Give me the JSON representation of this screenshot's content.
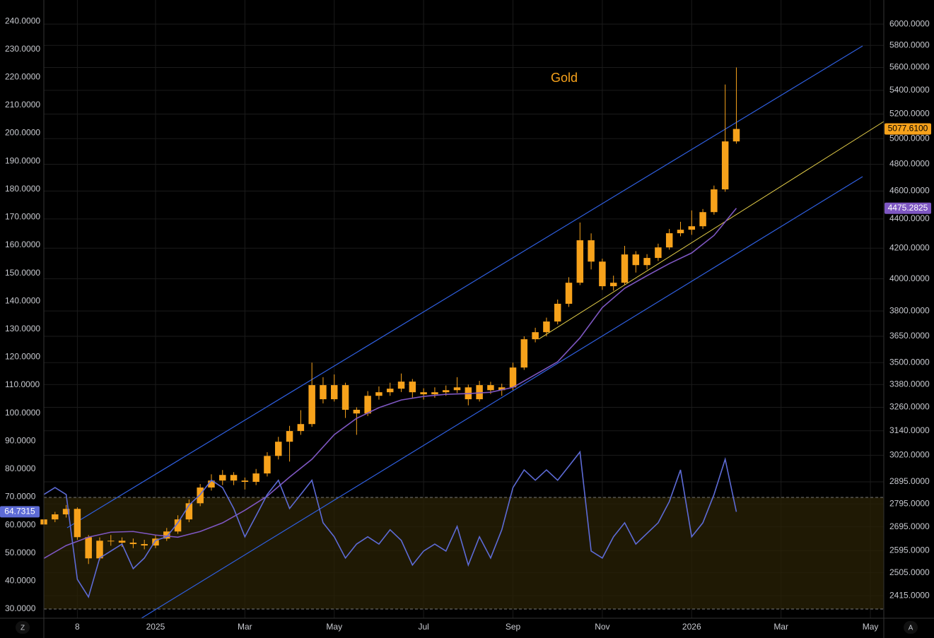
{
  "chart_data": {
    "type": "candlestick",
    "title": "Gold",
    "grid": true,
    "y2_log": true,
    "x": [
      -2.5,
      -2.25,
      -2,
      -1.75,
      -1.5,
      -1.25,
      -1,
      -0.75,
      -0.5,
      -0.25,
      0,
      0.25,
      0.5,
      0.75,
      1,
      1.25,
      1.5,
      1.75,
      2,
      2.25,
      2.5,
      2.75,
      3,
      3.25,
      3.5,
      3.75,
      4,
      4.25,
      4.5,
      4.75,
      5,
      5.25,
      5.5,
      5.75,
      6,
      6.25,
      6.5,
      6.75,
      7,
      7.25,
      7.5,
      7.75,
      8,
      8.25,
      8.5,
      8.75,
      9,
      9.25,
      9.5,
      9.75,
      10,
      10.25,
      10.5,
      10.75,
      11,
      11.25,
      11.5,
      11.75,
      12,
      12.25,
      12.5,
      12.75,
      13
    ],
    "xlim": [
      -2.5,
      16.3
    ],
    "xticks": [
      {
        "value": -1.75,
        "label": "8"
      },
      {
        "value": 0,
        "label": "2025"
      },
      {
        "value": 2,
        "label": "Mar"
      },
      {
        "value": 4,
        "label": "May"
      },
      {
        "value": 6,
        "label": "Jul"
      },
      {
        "value": 8,
        "label": "Sep"
      },
      {
        "value": 10,
        "label": "Nov"
      },
      {
        "value": 12,
        "label": "2026"
      },
      {
        "value": 14,
        "label": "Mar"
      },
      {
        "value": 16,
        "label": "May"
      }
    ],
    "ylim": [
      26.7,
      247.6
    ],
    "yticks": [
      {
        "value": 240,
        "label": "240.0000"
      },
      {
        "value": 230,
        "label": "230.0000"
      },
      {
        "value": 220,
        "label": "220.0000"
      },
      {
        "value": 210,
        "label": "210.0000"
      },
      {
        "value": 200,
        "label": "200.0000"
      },
      {
        "value": 190,
        "label": "190.0000"
      },
      {
        "value": 180,
        "label": "180.0000"
      },
      {
        "value": 170,
        "label": "170.0000"
      },
      {
        "value": 160,
        "label": "160.0000"
      },
      {
        "value": 150,
        "label": "150.0000"
      },
      {
        "value": 140,
        "label": "140.0000"
      },
      {
        "value": 130,
        "label": "130.0000"
      },
      {
        "value": 120,
        "label": "120.0000"
      },
      {
        "value": 110,
        "label": "110.0000"
      },
      {
        "value": 100,
        "label": "100.0000"
      },
      {
        "value": 90,
        "label": "90.0000"
      },
      {
        "value": 80,
        "label": "80.0000"
      },
      {
        "value": 70,
        "label": "70.0000"
      },
      {
        "value": 60,
        "label": "60.0000"
      },
      {
        "value": 50,
        "label": "50.0000"
      },
      {
        "value": 40,
        "label": "40.0000"
      },
      {
        "value": 30,
        "label": "30.0000"
      }
    ],
    "y2lim": [
      2330,
      6235
    ],
    "y2ticks": [
      {
        "value": 6000,
        "label": "6000.0000"
      },
      {
        "value": 5800,
        "label": "5800.0000"
      },
      {
        "value": 5600,
        "label": "5600.0000"
      },
      {
        "value": 5400,
        "label": "5400.0000"
      },
      {
        "value": 5200,
        "label": "5200.0000"
      },
      {
        "value": 5000,
        "label": "5000.0000"
      },
      {
        "value": 4800,
        "label": "4800.0000"
      },
      {
        "value": 4600,
        "label": "4600.0000"
      },
      {
        "value": 4400,
        "label": "4400.0000"
      },
      {
        "value": 4200,
        "label": "4200.0000"
      },
      {
        "value": 4000,
        "label": "4000.0000"
      },
      {
        "value": 3800,
        "label": "3800.0000"
      },
      {
        "value": 3650,
        "label": "3650.0000"
      },
      {
        "value": 3500,
        "label": "3500.0000"
      },
      {
        "value": 3380,
        "label": "3380.0000"
      },
      {
        "value": 3260,
        "label": "3260.0000"
      },
      {
        "value": 3140,
        "label": "3140.0000"
      },
      {
        "value": 3020,
        "label": "3020.0000"
      },
      {
        "value": 2895,
        "label": "2895.0000"
      },
      {
        "value": 2795,
        "label": "2795.0000"
      },
      {
        "value": 2695,
        "label": "2695.0000"
      },
      {
        "value": 2595,
        "label": "2595.0000"
      },
      {
        "value": 2505,
        "label": "2505.0000"
      },
      {
        "value": 2415,
        "label": "2415.0000"
      }
    ],
    "series": [
      {
        "type": "candlestick",
        "axis": "y2",
        "color": "#f7a21b",
        "last_value_label": "5077.6100",
        "open": [
          2705,
          2727,
          2749,
          2773,
          2651,
          2563,
          2636,
          2636,
          2628,
          2622,
          2616,
          2645,
          2675,
          2727,
          2798,
          2869,
          2901,
          2927,
          2901,
          2895,
          2934,
          3017,
          3086,
          3139,
          3174,
          3377,
          3302,
          3377,
          3247,
          3228,
          3320,
          3339,
          3358,
          3396,
          3339,
          3328,
          3339,
          3350,
          3365,
          3302,
          3377,
          3350,
          3365,
          3473,
          3633,
          3674,
          3737,
          3844,
          3975,
          4253,
          4111,
          3953,
          3975,
          4158,
          4088,
          4135,
          4205,
          4301,
          4325,
          4349,
          4448,
          4612,
          4978
        ],
        "high": [
          2740,
          2760,
          2790,
          2780,
          2660,
          2650,
          2660,
          2650,
          2645,
          2640,
          2660,
          2690,
          2745,
          2815,
          2885,
          2930,
          2950,
          2940,
          2915,
          2955,
          3035,
          3110,
          3165,
          3245,
          3500,
          3420,
          3435,
          3390,
          3260,
          3345,
          3370,
          3390,
          3440,
          3410,
          3360,
          3365,
          3375,
          3420,
          3380,
          3400,
          3395,
          3385,
          3500,
          3650,
          3700,
          3760,
          3870,
          4010,
          4375,
          4300,
          4130,
          4020,
          4215,
          4180,
          4160,
          4230,
          4330,
          4380,
          4460,
          4470,
          4640,
          5450,
          5600
        ],
        "low": [
          2695,
          2715,
          2735,
          2640,
          2540,
          2555,
          2615,
          2610,
          2605,
          2600,
          2605,
          2635,
          2665,
          2715,
          2785,
          2855,
          2880,
          2880,
          2860,
          2880,
          2920,
          3000,
          2990,
          3120,
          3160,
          3280,
          3290,
          3205,
          3120,
          3215,
          3300,
          3320,
          3340,
          3310,
          3300,
          3310,
          3320,
          3335,
          3270,
          3290,
          3330,
          3320,
          3350,
          3460,
          3615,
          3650,
          3720,
          3825,
          3960,
          4060,
          3930,
          3925,
          3960,
          4040,
          4060,
          4115,
          4190,
          4280,
          4290,
          4330,
          4430,
          4595,
          4960
        ],
        "close": [
          2727,
          2749,
          2773,
          2651,
          2563,
          2636,
          2636,
          2628,
          2622,
          2616,
          2645,
          2675,
          2727,
          2798,
          2869,
          2901,
          2927,
          2901,
          2895,
          2934,
          3017,
          3086,
          3139,
          3174,
          3377,
          3302,
          3377,
          3247,
          3228,
          3320,
          3339,
          3358,
          3396,
          3339,
          3328,
          3339,
          3350,
          3365,
          3302,
          3377,
          3350,
          3365,
          3473,
          3633,
          3674,
          3737,
          3844,
          3975,
          4253,
          4111,
          3953,
          3975,
          4158,
          4088,
          4135,
          4205,
          4301,
          4325,
          4349,
          4448,
          4612,
          4978,
          5077.61
        ]
      },
      {
        "type": "line",
        "axis": "y2",
        "color": "#7e57c2",
        "last_value_label": "4475.2825",
        "x": [
          -2.5,
          -2,
          -1.5,
          -1,
          -0.5,
          0,
          0.5,
          1,
          1.5,
          2,
          2.5,
          3,
          3.5,
          4,
          4.5,
          5,
          5.5,
          6,
          6.5,
          7,
          7.5,
          8,
          8.5,
          9,
          9.5,
          10,
          10.5,
          11,
          11.5,
          12,
          12.5,
          13
        ],
        "values": [
          2563,
          2616,
          2651,
          2672,
          2675,
          2660,
          2651,
          2675,
          2712,
          2767,
          2830,
          2917,
          3001,
          3121,
          3203,
          3258,
          3298,
          3317,
          3328,
          3332,
          3339,
          3365,
          3434,
          3505,
          3641,
          3821,
          3940,
          4020,
          4098,
          4168,
          4286,
          4475.2825
        ]
      },
      {
        "type": "line",
        "color": "#5d6bd6",
        "last_value_label": "64.7315",
        "values": [
          70.9,
          73.4,
          70.9,
          40.6,
          34.3,
          48.2,
          50.7,
          53.2,
          44.4,
          48.2,
          54.5,
          55.8,
          60.8,
          67.1,
          70.9,
          76.0,
          73.4,
          65.9,
          55.8,
          63.3,
          70.9,
          76.0,
          65.9,
          70.9,
          76.0,
          60.8,
          55.8,
          48.2,
          53.2,
          55.8,
          53.2,
          58.3,
          54.5,
          45.7,
          50.7,
          53.2,
          50.7,
          59.5,
          45.7,
          55.8,
          48.2,
          58.3,
          73.4,
          79.7,
          76.0,
          79.7,
          76.0,
          81.0,
          86.1,
          50.7,
          48.2,
          55.8,
          60.8,
          53.2,
          57.0,
          60.8,
          68.4,
          79.7,
          55.8,
          60.8,
          70.9,
          83.5,
          64.7315
        ]
      }
    ],
    "scale_buttons": [
      "Z",
      "A"
    ]
  }
}
